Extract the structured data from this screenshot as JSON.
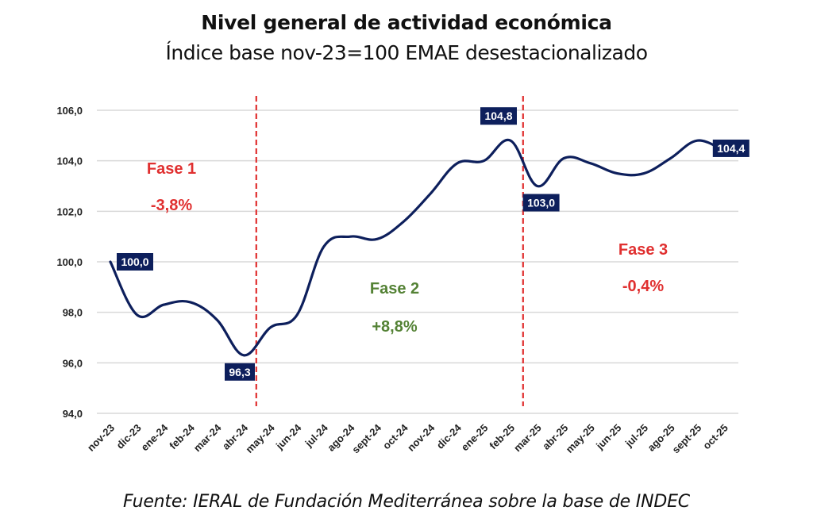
{
  "chart_data": {
    "type": "line",
    "title": "Nivel general de actividad económica",
    "subtitle": "Índice base nov-23=100 EMAE desestacionalizado",
    "source": "Fuente: IERAL de Fundación Mediterránea sobre la base de INDEC",
    "xlabel": "",
    "ylabel": "",
    "ylim": [
      94,
      106
    ],
    "yticks": [
      94,
      96,
      98,
      100,
      102,
      104,
      106
    ],
    "ytick_labels": [
      "94,0",
      "96,0",
      "98,0",
      "100,0",
      "102,0",
      "104,0",
      "106,0"
    ],
    "grid": true,
    "categories": [
      "nov-23",
      "dic-23",
      "ene-24",
      "feb-24",
      "mar-24",
      "abr-24",
      "may-24",
      "jun-24",
      "jul-24",
      "ago-24",
      "sept-24",
      "oct-24",
      "nov-24",
      "dic-24",
      "ene-25",
      "feb-25",
      "mar-25",
      "abr-25",
      "may-25",
      "jun-25",
      "jul-25",
      "ago-25",
      "sept-25",
      "oct-25"
    ],
    "series": [
      {
        "name": "EMAE desestacionalizado",
        "color": "#0d1f5c",
        "values": [
          100.0,
          97.9,
          98.3,
          98.4,
          97.7,
          96.3,
          97.4,
          97.9,
          100.6,
          101.0,
          100.9,
          101.6,
          102.7,
          103.9,
          104.0,
          104.8,
          103.0,
          104.1,
          103.9,
          103.5,
          103.5,
          104.1,
          104.8,
          104.4
        ]
      }
    ],
    "data_labels": [
      {
        "index": 0,
        "text": "100,0",
        "position": "right"
      },
      {
        "index": 5,
        "text": "96,3",
        "position": "below"
      },
      {
        "index": 15,
        "text": "104,8",
        "position": "above"
      },
      {
        "index": 16,
        "text": "103,0",
        "position": "below"
      },
      {
        "index": 23,
        "text": "104,4",
        "position": "right"
      }
    ],
    "phase_dividers": [
      {
        "between": [
          "abr-24",
          "may-24"
        ],
        "color": "#e03030"
      },
      {
        "between": [
          "feb-25",
          "mar-25"
        ],
        "color": "#e03030"
      }
    ],
    "annotations": [
      {
        "name": "Fase 1",
        "change": "-3,8%",
        "color": "#e03030",
        "region": "upper-left"
      },
      {
        "name": "Fase 2",
        "change": "+8,8%",
        "color": "#548235",
        "region": "middle"
      },
      {
        "name": "Fase 3",
        "change": "-0,4%",
        "color": "#e03030",
        "region": "right"
      }
    ],
    "label_box_color": "#0d1f5c",
    "grid_color": "#d9d9d9"
  }
}
